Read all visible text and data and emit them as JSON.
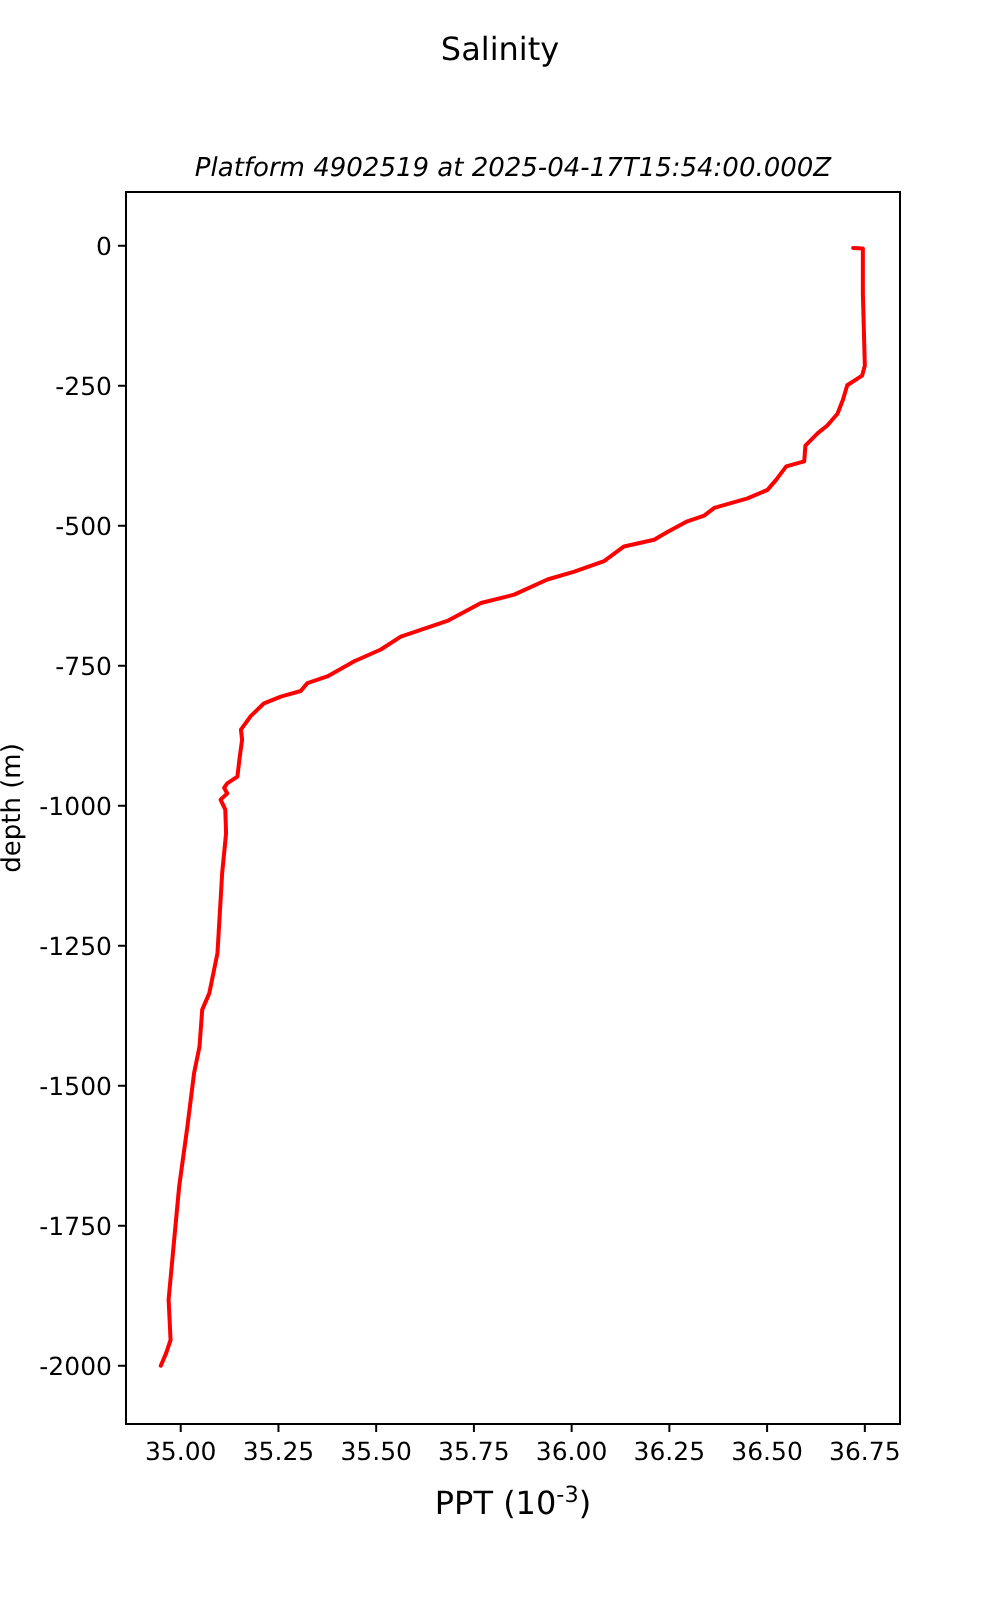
{
  "chart_data": {
    "type": "line",
    "title": "Salinity",
    "subtitle": "Platform 4902519 at 2025-04-17T15:54:00.000Z",
    "xlabel": "PPT (10$^{-3}$)",
    "ylabel": "depth (m)",
    "xlim": [
      34.86,
      36.84
    ],
    "ylim": [
      -2104,
      96
    ],
    "xticks": [
      {
        "value": 35,
        "label": "35.00"
      },
      {
        "value": 35.25,
        "label": "35.25"
      },
      {
        "value": 35.5,
        "label": "35.50"
      },
      {
        "value": 35.75,
        "label": "35.75"
      },
      {
        "value": 36,
        "label": "36.00"
      },
      {
        "value": 36.25,
        "label": "36.25"
      },
      {
        "value": 36.5,
        "label": "36.50"
      },
      {
        "value": 36.75,
        "label": "36.75"
      }
    ],
    "yticks": [
      0,
      -250,
      -500,
      -750,
      -1000,
      -1250,
      -1500,
      -1750,
      -2000
    ],
    "series": [
      {
        "color": "#ff0000",
        "x": [
          36.72,
          36.745,
          36.745,
          36.75,
          36.743,
          36.705,
          36.694,
          36.68,
          36.654,
          36.629,
          36.598,
          36.595,
          36.549,
          36.523,
          36.501,
          36.45,
          36.365,
          36.339,
          36.296,
          36.245,
          36.211,
          36.134,
          36.083,
          36.007,
          35.938,
          35.853,
          35.768,
          35.682,
          35.563,
          35.512,
          35.444,
          35.375,
          35.324,
          35.307,
          35.256,
          35.213,
          35.179,
          35.154,
          35.157,
          35.15,
          35.145,
          35.119,
          35.111,
          35.119,
          35.102,
          35.114,
          35.116,
          35.106,
          35.102,
          35.094,
          35.073,
          35.055,
          35.048,
          35.034,
          35.017,
          34.996,
          34.98,
          34.969,
          34.974,
          34.963,
          34.949
        ],
        "values": [
          -4,
          -5,
          -85,
          -214,
          -232,
          -249,
          -275,
          -300,
          -321,
          -335,
          -357,
          -385,
          -394,
          -418,
          -436,
          -451,
          -468,
          -482,
          -492,
          -511,
          -525,
          -537,
          -563,
          -582,
          -596,
          -623,
          -638,
          -670,
          -698,
          -721,
          -742,
          -769,
          -781,
          -795,
          -805,
          -817,
          -840,
          -864,
          -882,
          -918,
          -948,
          -960,
          -968,
          -978,
          -989,
          -1007,
          -1049,
          -1120,
          -1168,
          -1263,
          -1335,
          -1364,
          -1430,
          -1478,
          -1573,
          -1680,
          -1799,
          -1882,
          -1954,
          -1977,
          -2000
        ]
      }
    ]
  }
}
